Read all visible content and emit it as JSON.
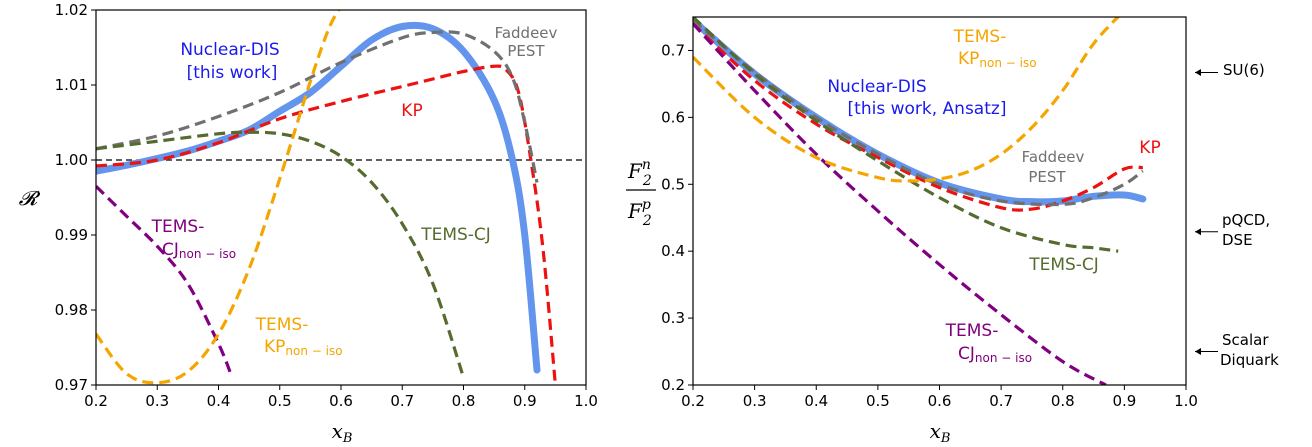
{
  "chart_data": [
    {
      "type": "line",
      "xlabel": "x_B",
      "ylabel": "R",
      "xlim": [
        0.2,
        1.0
      ],
      "ylim": [
        0.97,
        1.02
      ],
      "xticks": [
        "0.2",
        "0.3",
        "0.4",
        "0.5",
        "0.6",
        "0.7",
        "0.8",
        "0.9",
        "1.0"
      ],
      "yticks": [
        "0.97",
        "0.98",
        "0.99",
        "1.00",
        "1.01",
        "1.02"
      ],
      "reference_line": 1.0,
      "series": [
        {
          "name": "Nuclear-DIS [this work]",
          "color": "#6495ed",
          "style": "band",
          "x": [
            0.2,
            0.25,
            0.3,
            0.35,
            0.4,
            0.45,
            0.5,
            0.55,
            0.6,
            0.65,
            0.7,
            0.75,
            0.8,
            0.85,
            0.88,
            0.9,
            0.92
          ],
          "y": [
            0.9985,
            0.9993,
            1.0002,
            1.0012,
            1.0025,
            1.004,
            1.0065,
            1.009,
            1.0125,
            1.016,
            1.0178,
            1.0175,
            1.0145,
            1.008,
            1.0,
            0.99,
            0.972
          ]
        },
        {
          "name": "KP",
          "color": "#ee1111",
          "style": "dashed",
          "x": [
            0.2,
            0.3,
            0.4,
            0.5,
            0.6,
            0.7,
            0.75,
            0.8,
            0.85,
            0.87,
            0.89,
            0.91,
            0.93,
            0.95
          ],
          "y": [
            0.9992,
            1.0,
            1.0023,
            1.0055,
            1.0078,
            1.0098,
            1.0108,
            1.0118,
            1.0125,
            1.012,
            1.009,
            1.0,
            0.988,
            0.97
          ]
        },
        {
          "name": "Faddeev PEST",
          "color": "#707070",
          "style": "dashed",
          "x": [
            0.2,
            0.3,
            0.4,
            0.5,
            0.6,
            0.7,
            0.75,
            0.8,
            0.85,
            0.88,
            0.9,
            0.92
          ],
          "y": [
            1.0015,
            1.0032,
            1.0058,
            1.009,
            1.013,
            1.0163,
            1.017,
            1.0168,
            1.0145,
            1.011,
            1.005,
            0.997
          ]
        },
        {
          "name": "TEMS-CJ",
          "color": "#556b2f",
          "style": "dashed",
          "x": [
            0.2,
            0.3,
            0.4,
            0.45,
            0.5,
            0.55,
            0.6,
            0.65,
            0.7,
            0.75,
            0.8
          ],
          "y": [
            1.0015,
            1.0025,
            1.0035,
            1.0037,
            1.0035,
            1.0025,
            1.0005,
            0.997,
            0.9915,
            0.9835,
            0.971
          ]
        },
        {
          "name": "TEMS-CJ_non-iso",
          "color": "#800080",
          "style": "dashed",
          "x": [
            0.2,
            0.25,
            0.3,
            0.35,
            0.4,
            0.42
          ],
          "y": [
            0.9965,
            0.9925,
            0.9885,
            0.9835,
            0.9755,
            0.9715
          ]
        },
        {
          "name": "TEMS-KP_non-iso",
          "color": "#f5a500",
          "style": "dashed",
          "x": [
            0.2,
            0.25,
            0.3,
            0.35,
            0.4,
            0.45,
            0.5,
            0.55,
            0.58,
            0.6
          ],
          "y": [
            0.9768,
            0.9715,
            0.9703,
            0.9718,
            0.9768,
            0.9855,
            0.9975,
            1.0105,
            1.0175,
            1.0205
          ]
        }
      ]
    },
    {
      "type": "line",
      "xlabel": "x_B",
      "ylabel": "F2n / F2p",
      "xlim": [
        0.2,
        1.0
      ],
      "ylim": [
        0.2,
        0.75
      ],
      "xticks": [
        "0.2",
        "0.3",
        "0.4",
        "0.5",
        "0.6",
        "0.7",
        "0.8",
        "0.9",
        "1.0"
      ],
      "yticks": [
        "0.2",
        "0.3",
        "0.4",
        "0.5",
        "0.6",
        "0.7"
      ],
      "series": [
        {
          "name": "Nuclear-DIS [this work, Ansatz]",
          "color": "#6495ed",
          "style": "band",
          "x": [
            0.2,
            0.3,
            0.4,
            0.5,
            0.6,
            0.7,
            0.75,
            0.8,
            0.85,
            0.9,
            0.93
          ],
          "y": [
            0.745,
            0.665,
            0.6,
            0.545,
            0.502,
            0.478,
            0.474,
            0.475,
            0.482,
            0.484,
            0.478
          ]
        },
        {
          "name": "KP",
          "color": "#ee1111",
          "style": "dashed",
          "x": [
            0.2,
            0.3,
            0.4,
            0.5,
            0.6,
            0.7,
            0.75,
            0.8,
            0.85,
            0.9,
            0.93
          ],
          "y": [
            0.74,
            0.655,
            0.59,
            0.54,
            0.495,
            0.465,
            0.463,
            0.475,
            0.495,
            0.523,
            0.525
          ]
        },
        {
          "name": "Faddeev PEST",
          "color": "#707070",
          "style": "dashed",
          "x": [
            0.2,
            0.3,
            0.4,
            0.5,
            0.6,
            0.7,
            0.8,
            0.85,
            0.9,
            0.93
          ],
          "y": [
            0.745,
            0.668,
            0.6,
            0.545,
            0.5,
            0.475,
            0.47,
            0.48,
            0.5,
            0.52
          ]
        },
        {
          "name": "TEMS-CJ",
          "color": "#556b2f",
          "style": "dashed",
          "x": [
            0.2,
            0.3,
            0.4,
            0.5,
            0.6,
            0.7,
            0.8,
            0.85,
            0.89
          ],
          "y": [
            0.75,
            0.665,
            0.595,
            0.535,
            0.48,
            0.435,
            0.41,
            0.405,
            0.4
          ]
        },
        {
          "name": "TEMS-CJ_non-iso",
          "color": "#800080",
          "style": "dashed",
          "x": [
            0.2,
            0.3,
            0.4,
            0.5,
            0.6,
            0.7,
            0.8,
            0.87
          ],
          "y": [
            0.74,
            0.64,
            0.545,
            0.46,
            0.38,
            0.305,
            0.235,
            0.2
          ]
        },
        {
          "name": "TEMS-KP_non-iso",
          "color": "#f5a500",
          "style": "dashed",
          "x": [
            0.2,
            0.3,
            0.4,
            0.5,
            0.55,
            0.6,
            0.65,
            0.7,
            0.75,
            0.8,
            0.85,
            0.9
          ],
          "y": [
            0.69,
            0.6,
            0.54,
            0.51,
            0.505,
            0.508,
            0.52,
            0.545,
            0.585,
            0.64,
            0.71,
            0.76
          ]
        }
      ],
      "side_markers": [
        {
          "label": "SU(6)",
          "y": 0.667
        },
        {
          "label": "pQCD, DSE",
          "y": 0.429
        },
        {
          "label": "Scalar Diquark",
          "y": 0.25
        }
      ]
    }
  ],
  "annotations": {
    "left": {
      "nuclear_dis_1": "Nuclear-DIS",
      "nuclear_dis_2": "[this work]",
      "faddeev_1": "Faddeev",
      "faddeev_2": "PEST",
      "kp": "KP",
      "tems_cj": "TEMS-CJ",
      "tems_cj_noniso_1": "TEMS-",
      "tems_cj_noniso_2": "CJ",
      "tems_cj_noniso_sub": "non − iso",
      "tems_kp_noniso_1": "TEMS-",
      "tems_kp_noniso_2": "KP",
      "tems_kp_noniso_sub": "non − iso"
    },
    "right": {
      "nuclear_dis_1": "Nuclear-DIS",
      "nuclear_dis_2": "[this work, Ansatz]",
      "faddeev_1": "Faddeev",
      "faddeev_2": "PEST",
      "kp": "KP",
      "tems_cj": "TEMS-CJ",
      "tems_cj_noniso_1": "TEMS-",
      "tems_cj_noniso_2": "CJ",
      "tems_cj_noniso_sub": "non − iso",
      "tems_kp_noniso_1": "TEMS-",
      "tems_kp_noniso_2": "KP",
      "tems_kp_noniso_sub": "non − iso",
      "ylabel_num": "F",
      "ylabel_num_sub": "2",
      "ylabel_num_sup": "n",
      "ylabel_den": "F",
      "ylabel_den_sub": "2",
      "ylabel_den_sup": "p",
      "su6": "SU(6)",
      "pqcd_1": "pQCD,",
      "pqcd_2": "DSE",
      "scalar_1": "Scalar",
      "scalar_2": "Diquark"
    },
    "xlabel_main": "x",
    "xlabel_sub": "B",
    "left_ylabel": "𝓡"
  },
  "colors": {
    "band": "#6495ed",
    "kp": "#ee1111",
    "faddeev": "#707070",
    "tems_cj": "#556b2f",
    "tems_cj_noniso": "#800080",
    "tems_kp_noniso": "#f5a500",
    "nuclear_label": "#1a1aee"
  }
}
